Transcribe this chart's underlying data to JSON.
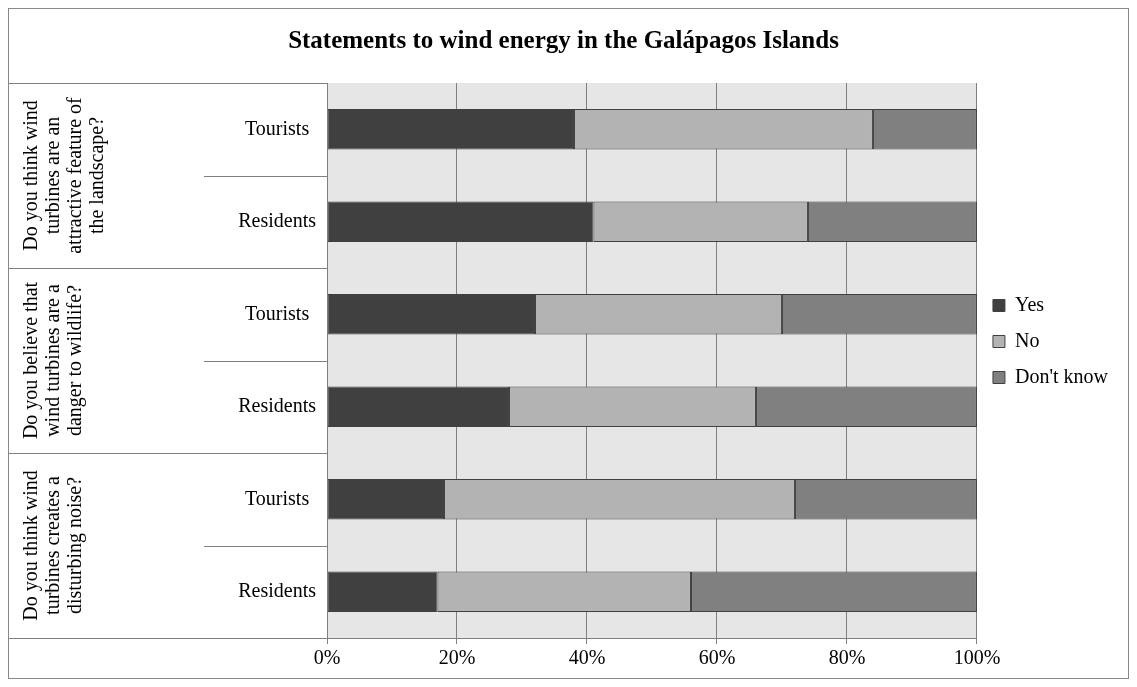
{
  "chart_data": {
    "type": "bar",
    "orientation": "horizontal",
    "stacked": true,
    "title": "Statements to wind energy in the Galápagos Islands",
    "categories": [
      "Tourists",
      "Residents",
      "Tourists",
      "Residents",
      "Tourists",
      "Residents"
    ],
    "annotations": [
      "Do you think wind turbines are an attractive feature of the landscape?",
      "Do you believe that wind turbines are a danger to wildlife?",
      "Do you think wind turbines creates a disturbing noise?"
    ],
    "series": [
      {
        "name": "Yes",
        "color": "#404040",
        "values": [
          38,
          41,
          32,
          28,
          18,
          17
        ]
      },
      {
        "name": "No",
        "color": "#b3b3b3",
        "values": [
          46,
          33,
          38,
          38,
          54,
          39
        ]
      },
      {
        "name": "Don't know",
        "color": "#808080",
        "values": [
          16,
          26,
          30,
          34,
          28,
          44
        ]
      }
    ],
    "xlim": [
      0,
      100
    ],
    "xticks": [
      {
        "value": 0,
        "label": "0%"
      },
      {
        "value": 20,
        "label": "20%"
      },
      {
        "value": 40,
        "label": "40%"
      },
      {
        "value": 60,
        "label": "60%"
      },
      {
        "value": 80,
        "label": "80%"
      },
      {
        "value": 100,
        "label": "100%"
      }
    ],
    "grid": "x",
    "legend": "right"
  }
}
